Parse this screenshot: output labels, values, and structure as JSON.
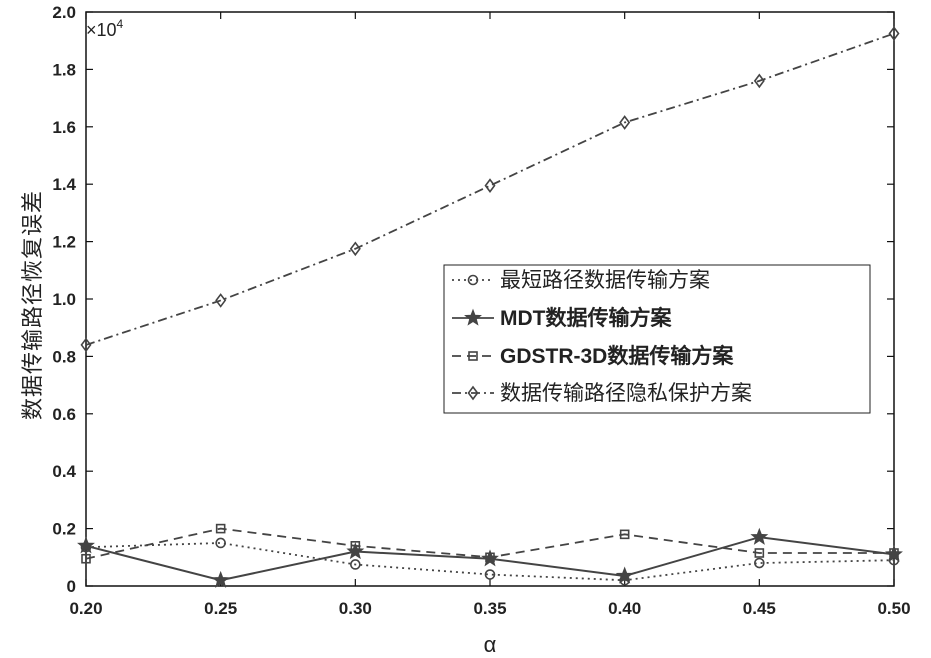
{
  "chart_data": {
    "type": "line",
    "xlabel": "α",
    "ylabel": "数据传输路径恢复误差",
    "y_multiplier": "×10",
    "y_exponent": "4",
    "x": [
      0.2,
      0.25,
      0.3,
      0.35,
      0.4,
      0.45,
      0.5
    ],
    "x_tick_labels": [
      "0.20",
      "0.25",
      "0.30",
      "0.35",
      "0.40",
      "0.45",
      "0.50"
    ],
    "y_ticks": [
      0,
      0.2,
      0.4,
      0.6,
      0.8,
      1.0,
      1.2,
      1.4,
      1.6,
      1.8,
      2.0
    ],
    "y_tick_labels": [
      "0",
      "0.2",
      "0.4",
      "0.6",
      "0.8",
      "1.0",
      "1.2",
      "1.4",
      "1.6",
      "1.8",
      "2.0"
    ],
    "xlim": [
      0.2,
      0.5
    ],
    "ylim": [
      0,
      2.0
    ],
    "grid": false,
    "legend_position": "center-right",
    "series": [
      {
        "name": "最短路径数据传输方案",
        "bold": false,
        "dash": "2,4",
        "marker": "circle",
        "values": [
          0.135,
          0.15,
          0.075,
          0.04,
          0.02,
          0.08,
          0.09
        ]
      },
      {
        "name": "MDT数据传输方案",
        "bold": true,
        "dash": "",
        "marker": "star",
        "values": [
          0.14,
          0.02,
          0.12,
          0.095,
          0.035,
          0.17,
          0.11
        ]
      },
      {
        "name": "GDSTR-3D数据传输方案",
        "bold": true,
        "dash": "9,6",
        "marker": "square",
        "values": [
          0.095,
          0.2,
          0.14,
          0.1,
          0.18,
          0.115,
          0.115
        ]
      },
      {
        "name": "数据传输路径隐私保护方案",
        "bold": false,
        "dash": "9,4,2,4",
        "marker": "diamond",
        "values": [
          0.84,
          0.995,
          1.175,
          1.395,
          1.615,
          1.76,
          1.925
        ]
      }
    ]
  },
  "colors": {
    "line": "#444444",
    "axis": "#111111",
    "text": "#222222",
    "background": "#ffffff"
  }
}
